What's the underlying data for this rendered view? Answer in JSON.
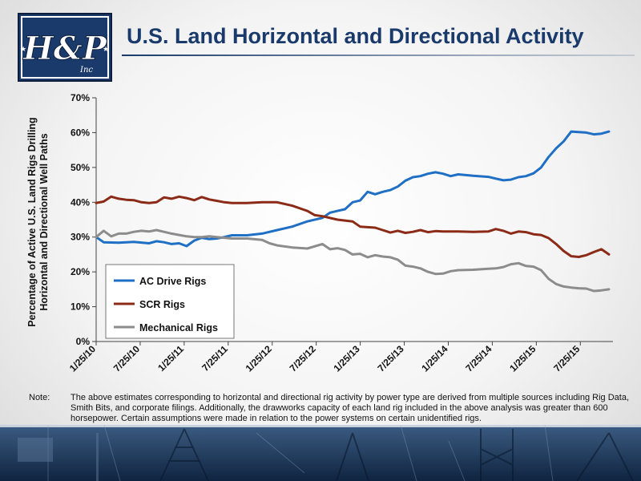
{
  "header": {
    "title": "U.S. Land Horizontal and Directional Activity",
    "logo_text": "H&P",
    "logo_small": "Inc"
  },
  "note": {
    "label": "Note:",
    "text": "The above estimates corresponding to horizontal and directional rig activity by power type are derived from multiple sources including Rig Data, Smith Bits, and corporate filings.  Additionally, the drawworks capacity of each land rig included in the above analysis was greater than 600 horsepower.  Certain assumptions were made in relation to the power systems on certain unidentified rigs."
  },
  "colors": {
    "title": "#1a3a6b",
    "ac": "#1f6fc4",
    "scr": "#8b2a16",
    "mech": "#8c8c8c"
  },
  "chart_data": {
    "type": "line",
    "ylabel": "Percentage of Active U.S. Land Rigs Drilling Horizontal and Directional Well Paths",
    "ylabel_lines": [
      "Percentage of Active U.S. Land Rigs Drilling",
      "Horizontal and Directional Well Paths"
    ],
    "xlabel": "",
    "ylim": [
      0,
      70
    ],
    "yticks": [
      "0%",
      "10%",
      "20%",
      "30%",
      "40%",
      "50%",
      "60%",
      "70%"
    ],
    "xticks": [
      "1/25/10",
      "7/25/10",
      "1/25/11",
      "7/25/11",
      "1/25/12",
      "7/25/12",
      "1/25/13",
      "7/25/13",
      "1/25/14",
      "7/25/14",
      "1/25/15",
      "7/25/15"
    ],
    "x_range": [
      0,
      68
    ],
    "legend_position": "lower-left",
    "grid": false,
    "series": [
      {
        "name": "AC Drive Rigs",
        "color": "#1f6fc4",
        "points": [
          [
            0,
            30
          ],
          [
            1,
            28.5
          ],
          [
            3,
            28.4
          ],
          [
            5,
            28.6
          ],
          [
            7,
            28.2
          ],
          [
            8,
            28.8
          ],
          [
            9,
            28.5
          ],
          [
            10,
            28
          ],
          [
            11,
            28.2
          ],
          [
            12,
            27.4
          ],
          [
            13,
            29
          ],
          [
            14,
            29.8
          ],
          [
            15,
            29.4
          ],
          [
            16,
            29.6
          ],
          [
            17,
            30
          ],
          [
            18,
            30.5
          ],
          [
            20,
            30.5
          ],
          [
            22,
            31
          ],
          [
            24,
            32
          ],
          [
            26,
            33
          ],
          [
            28,
            34.5
          ],
          [
            30,
            35.5
          ],
          [
            31,
            37
          ],
          [
            32,
            37.5
          ],
          [
            33,
            38
          ],
          [
            34,
            40
          ],
          [
            35,
            40.5
          ],
          [
            36,
            43
          ],
          [
            37,
            42.3
          ],
          [
            38,
            43
          ],
          [
            39,
            43.5
          ],
          [
            40,
            44.5
          ],
          [
            41,
            46.2
          ],
          [
            42,
            47.2
          ],
          [
            43,
            47.5
          ],
          [
            44,
            48.2
          ],
          [
            45,
            48.6
          ],
          [
            46,
            48.2
          ],
          [
            47,
            47.5
          ],
          [
            48,
            48
          ],
          [
            50,
            47.6
          ],
          [
            52,
            47.3
          ],
          [
            53,
            46.8
          ],
          [
            54,
            46.3
          ],
          [
            55,
            46.5
          ],
          [
            56,
            47.2
          ],
          [
            57,
            47.5
          ],
          [
            58,
            48.3
          ],
          [
            59,
            50
          ],
          [
            60,
            53
          ],
          [
            61,
            55.5
          ],
          [
            62,
            57.5
          ],
          [
            63,
            60.3
          ],
          [
            65,
            60
          ],
          [
            66,
            59.5
          ],
          [
            67,
            59.7
          ],
          [
            68,
            60.3
          ]
        ]
      },
      {
        "name": "SCR Rigs",
        "color": "#8b2a16",
        "points": [
          [
            0,
            39.8
          ],
          [
            1,
            40.2
          ],
          [
            2,
            41.6
          ],
          [
            3,
            41
          ],
          [
            4,
            40.7
          ],
          [
            5,
            40.6
          ],
          [
            6,
            40
          ],
          [
            7,
            39.8
          ],
          [
            8,
            40
          ],
          [
            9,
            41.4
          ],
          [
            10,
            41
          ],
          [
            11,
            41.6
          ],
          [
            12,
            41.2
          ],
          [
            13,
            40.6
          ],
          [
            14,
            41.5
          ],
          [
            15,
            40.8
          ],
          [
            16,
            40.4
          ],
          [
            17,
            40
          ],
          [
            18,
            39.8
          ],
          [
            20,
            39.8
          ],
          [
            22,
            40
          ],
          [
            24,
            40
          ],
          [
            26,
            39
          ],
          [
            28,
            37.5
          ],
          [
            29,
            36.3
          ],
          [
            30,
            36
          ],
          [
            32,
            35
          ],
          [
            34,
            34.5
          ],
          [
            35,
            33
          ],
          [
            37,
            32.7
          ],
          [
            38,
            32
          ],
          [
            39,
            31.3
          ],
          [
            40,
            31.8
          ],
          [
            41,
            31.2
          ],
          [
            42,
            31.5
          ],
          [
            43,
            32
          ],
          [
            44,
            31.4
          ],
          [
            45,
            31.7
          ],
          [
            46,
            31.6
          ],
          [
            48,
            31.6
          ],
          [
            50,
            31.5
          ],
          [
            52,
            31.6
          ],
          [
            53,
            32.3
          ],
          [
            54,
            31.8
          ],
          [
            55,
            31
          ],
          [
            56,
            31.6
          ],
          [
            57,
            31.4
          ],
          [
            58,
            30.8
          ],
          [
            59,
            30.6
          ],
          [
            60,
            29.7
          ],
          [
            61,
            28
          ],
          [
            62,
            26
          ],
          [
            63,
            24.5
          ],
          [
            64,
            24.3
          ],
          [
            65,
            24.8
          ],
          [
            66,
            25.7
          ],
          [
            67,
            26.5
          ],
          [
            68,
            25
          ]
        ]
      },
      {
        "name": "Mechanical Rigs",
        "color": "#8c8c8c",
        "points": [
          [
            0,
            30
          ],
          [
            1,
            31.8
          ],
          [
            2,
            30.2
          ],
          [
            3,
            31
          ],
          [
            4,
            31
          ],
          [
            5,
            31.5
          ],
          [
            6,
            31.8
          ],
          [
            7,
            31.6
          ],
          [
            8,
            32
          ],
          [
            9,
            31.5
          ],
          [
            10,
            31
          ],
          [
            11,
            30.6
          ],
          [
            12,
            30.2
          ],
          [
            13,
            30
          ],
          [
            14,
            30
          ],
          [
            15,
            30.2
          ],
          [
            16,
            30
          ],
          [
            17,
            29.8
          ],
          [
            18,
            29.6
          ],
          [
            20,
            29.6
          ],
          [
            22,
            29.2
          ],
          [
            23,
            28.2
          ],
          [
            24,
            27.6
          ],
          [
            26,
            27
          ],
          [
            28,
            26.7
          ],
          [
            30,
            28
          ],
          [
            31,
            26.5
          ],
          [
            32,
            26.8
          ],
          [
            33,
            26.3
          ],
          [
            34,
            25
          ],
          [
            35,
            25.2
          ],
          [
            36,
            24.2
          ],
          [
            37,
            24.8
          ],
          [
            38,
            24.4
          ],
          [
            39,
            24.2
          ],
          [
            40,
            23.5
          ],
          [
            41,
            21.8
          ],
          [
            42,
            21.5
          ],
          [
            43,
            21
          ],
          [
            44,
            20
          ],
          [
            45,
            19.4
          ],
          [
            46,
            19.5
          ],
          [
            47,
            20.2
          ],
          [
            48,
            20.5
          ],
          [
            50,
            20.6
          ],
          [
            52,
            20.9
          ],
          [
            53,
            21
          ],
          [
            54,
            21.4
          ],
          [
            55,
            22.2
          ],
          [
            56,
            22.5
          ],
          [
            57,
            21.7
          ],
          [
            58,
            21.5
          ],
          [
            59,
            20.5
          ],
          [
            60,
            18
          ],
          [
            61,
            16.5
          ],
          [
            62,
            15.8
          ],
          [
            63,
            15.5
          ],
          [
            64,
            15.3
          ],
          [
            65,
            15.2
          ],
          [
            66,
            14.5
          ],
          [
            67,
            14.7
          ],
          [
            68,
            15
          ]
        ]
      }
    ]
  }
}
